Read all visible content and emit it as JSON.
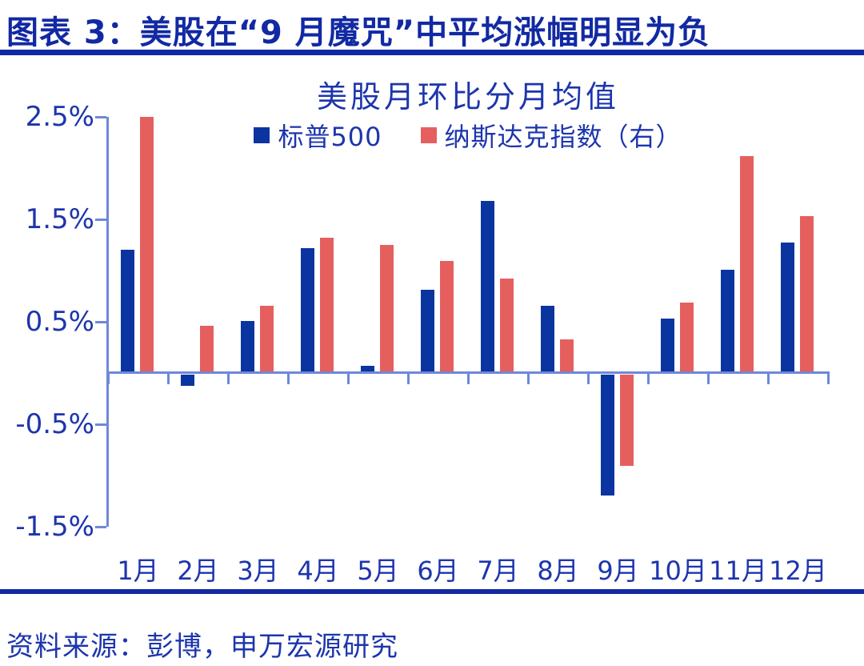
{
  "figure": {
    "title": "图表 3：美股在“9 月魔咒”中平均涨幅明显为负",
    "source": "资料来源：彭博，申万宏源研究"
  },
  "colors": {
    "navy_text": "#1d35ad",
    "title_navy": "#1229a3",
    "axis_blue": "#6f88d9",
    "sp500_blue": "#0a34a0",
    "nasdaq_red": "#e55f5f"
  },
  "chart_data": {
    "type": "bar",
    "title": "美股月环比分月均值",
    "categories": [
      "1月",
      "2月",
      "3月",
      "4月",
      "5月",
      "6月",
      "7月",
      "8月",
      "9月",
      "10月",
      "11月",
      "12月"
    ],
    "series": [
      {
        "name": "标普500",
        "color": "#0a34a0",
        "values": [
          1.2,
          -0.11,
          0.51,
          1.22,
          0.07,
          0.81,
          1.68,
          0.66,
          -1.18,
          0.53,
          1.01,
          1.27
        ]
      },
      {
        "name": "纳斯达克指数（右）",
        "color": "#e55f5f",
        "values": [
          2.5,
          0.46,
          0.66,
          1.32,
          1.25,
          1.09,
          0.92,
          0.33,
          -0.89,
          0.69,
          2.12,
          1.53
        ]
      }
    ],
    "ylabel": "",
    "xlabel": "",
    "ylim": [
      -1.5,
      2.5
    ],
    "yticks": [
      2.5,
      1.5,
      0.5,
      -0.5,
      -1.5
    ],
    "ytick_labels": [
      "2.5%",
      "1.5%",
      "0.5%",
      "-0.5%",
      "-1.5%"
    ],
    "grid": false,
    "legend_position": "top-center"
  }
}
